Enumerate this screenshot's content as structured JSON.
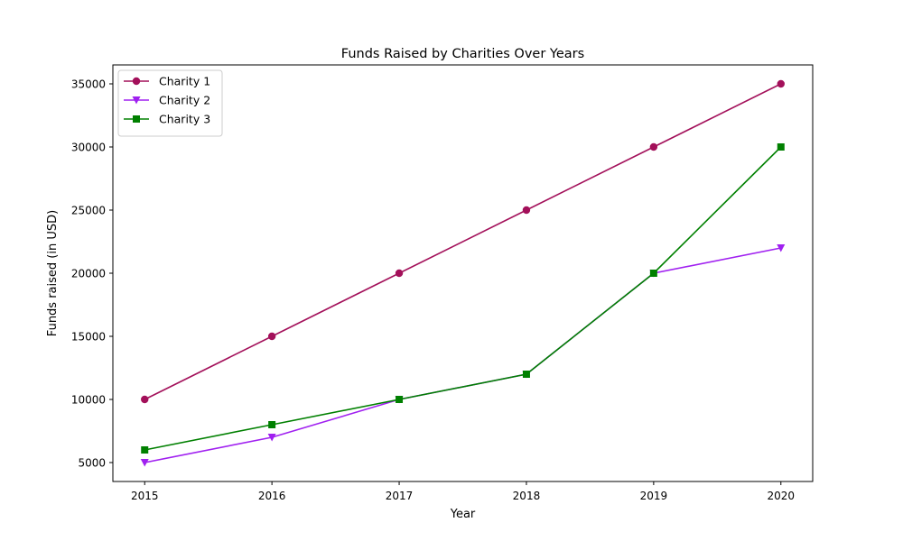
{
  "chart_data": {
    "type": "line",
    "title": "Funds Raised by Charities Over Years",
    "xlabel": "Year",
    "ylabel": "Funds raised (in USD)",
    "x": [
      2015,
      2016,
      2017,
      2018,
      2019,
      2020
    ],
    "x_tick_labels": [
      "2015",
      "2016",
      "2017",
      "2018",
      "2019",
      "2020"
    ],
    "y_ticks": [
      5000,
      10000,
      15000,
      20000,
      25000,
      30000,
      35000
    ],
    "y_tick_labels": [
      "5000",
      "10000",
      "15000",
      "20000",
      "25000",
      "30000",
      "35000"
    ],
    "xlim": [
      2014.75,
      2020.25
    ],
    "ylim": [
      3500,
      36500
    ],
    "grid": false,
    "legend_position": "upper-left",
    "series": [
      {
        "name": "Charity 1",
        "color": "#a3105a",
        "marker": "circle",
        "values": [
          10000,
          15000,
          20000,
          25000,
          30000,
          35000
        ]
      },
      {
        "name": "Charity 2",
        "color": "#a020f0",
        "marker": "triangle-down",
        "values": [
          5000,
          7000,
          10000,
          12000,
          20000,
          22000
        ]
      },
      {
        "name": "Charity 3",
        "color": "#008000",
        "marker": "square",
        "values": [
          6000,
          8000,
          10000,
          12000,
          20000,
          30000
        ]
      }
    ]
  }
}
